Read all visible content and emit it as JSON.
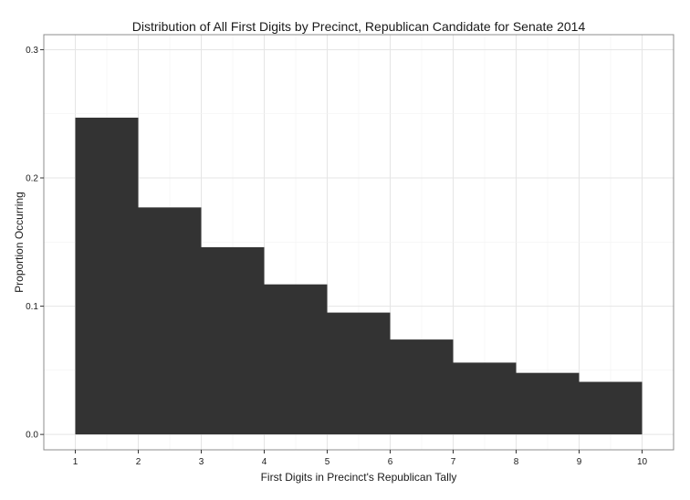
{
  "chart_data": {
    "type": "bar",
    "title": "Distribution of All First Digits by Precinct, Republican Candidate for Senate 2014",
    "xlabel": "First Digits in Precinct's Republican Tally",
    "ylabel": "Proportion Occurring",
    "bins": [
      {
        "start": 1,
        "end": 2,
        "value": 0.247
      },
      {
        "start": 2,
        "end": 3,
        "value": 0.177
      },
      {
        "start": 3,
        "end": 4,
        "value": 0.146
      },
      {
        "start": 4,
        "end": 5,
        "value": 0.117
      },
      {
        "start": 5,
        "end": 6,
        "value": 0.095
      },
      {
        "start": 6,
        "end": 7,
        "value": 0.074
      },
      {
        "start": 7,
        "end": 8,
        "value": 0.056
      },
      {
        "start": 8,
        "end": 9,
        "value": 0.048
      },
      {
        "start": 9,
        "end": 10,
        "value": 0.041
      }
    ],
    "xticks": [
      "1",
      "2",
      "3",
      "4",
      "5",
      "6",
      "7",
      "8",
      "9",
      "10"
    ],
    "yticks": [
      "0.0",
      "0.1",
      "0.2",
      "0.3"
    ],
    "xlim": [
      0.5,
      10.5
    ],
    "ylim": [
      -0.012,
      0.3117
    ],
    "grid": true,
    "legend": "none",
    "colors": {
      "bar": "#333333",
      "grid": "#e5e5e5",
      "panel_border": "#8c8c8c",
      "background": "#ffffff"
    }
  }
}
